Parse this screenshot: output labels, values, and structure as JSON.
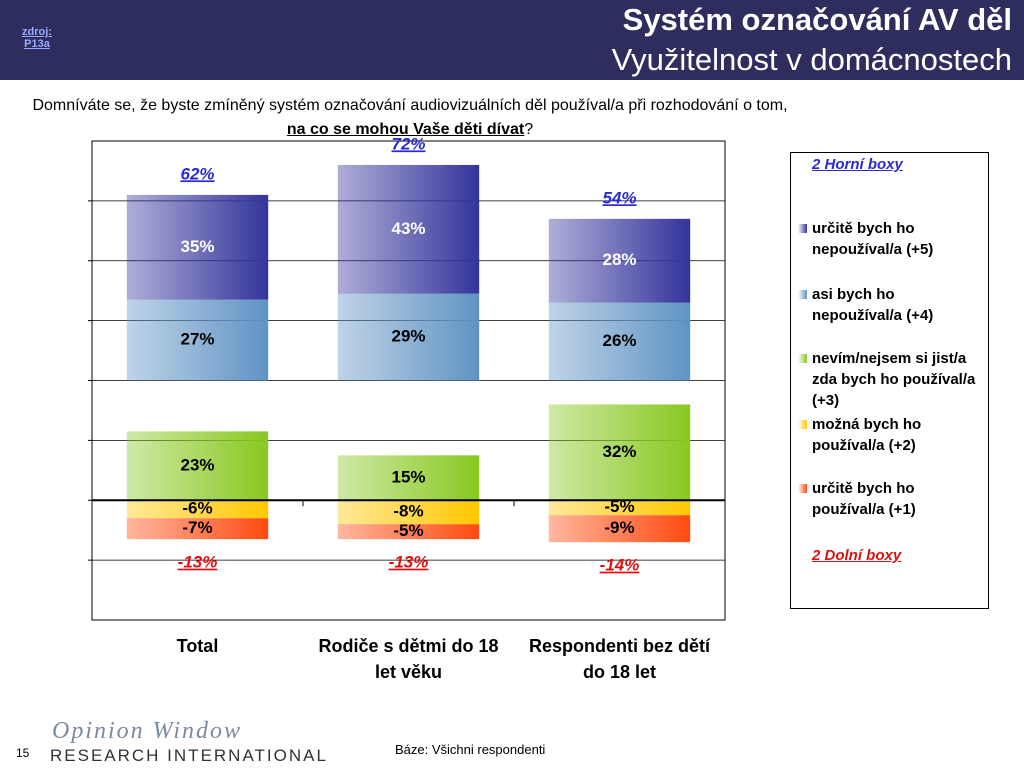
{
  "header": {
    "source_label": "zdroj:",
    "source": "P13a",
    "title": "Systém označování AV děl",
    "subtitle": "Využitelnost v domácnostech",
    "question_start": "Domníváte se, že byste zmíněný systém označování audiovizuálních děl používal/a při rozhodování o tom,",
    "question_emphasis": "na co se mohou Vaše děti dívat",
    "question_end": "?"
  },
  "chart_data": {
    "type": "bar",
    "categories": [
      "Total",
      "Rodiče s dětmi do 18 let věku",
      "Respondenti bez dětí do 18 let"
    ],
    "series": [
      {
        "name": "určitě bych ho nepoužíval/a (+5)",
        "color": "#34349c",
        "values": [
          35,
          43,
          28
        ],
        "value_labels": [
          "35%",
          "43%",
          "28%"
        ]
      },
      {
        "name": "asi bych ho nepoužíval/a (+4)",
        "color": "#5f93c4",
        "values": [
          27,
          29,
          26
        ],
        "value_labels": [
          "27%",
          "29%",
          "26%"
        ]
      },
      {
        "name": "nevím/nejsem si jist/a zda bych ho používal/a (+3)",
        "color": "#88c820",
        "values": [
          23,
          15,
          32
        ],
        "value_labels": [
          "23%",
          "15%",
          "32%"
        ]
      },
      {
        "name": "možná bych ho používal/a (+2)",
        "color": "#ffc800",
        "values": [
          -6,
          -8,
          -5
        ],
        "value_labels": [
          "-6%",
          "-8%",
          "-5%"
        ]
      },
      {
        "name": "určitě bych ho používal/a (+1)",
        "color": "#ff4a10",
        "values": [
          -7,
          -5,
          -9
        ],
        "value_labels": [
          "-7%",
          "-5%",
          "-9%"
        ]
      }
    ],
    "top_totals": {
      "name": "2 Horní boxy",
      "values": [
        62,
        72,
        54
      ],
      "value_labels": [
        "62%",
        "72%",
        "54%"
      ]
    },
    "bottom_totals": {
      "name": "2 Dolní boxy",
      "values": [
        -13,
        -13,
        -14
      ],
      "value_labels": [
        "-13%",
        "-13%",
        "-14%"
      ]
    },
    "ylim": [
      -40,
      120
    ],
    "yticks": [
      -20,
      0,
      20,
      40,
      60,
      80,
      100
    ],
    "grid": true
  },
  "footer": {
    "base": "Báze: Všichni respondenti",
    "page": "15",
    "logo_top": "Opinion Window",
    "logo_bottom": "RESEARCH INTERNATIONAL"
  }
}
